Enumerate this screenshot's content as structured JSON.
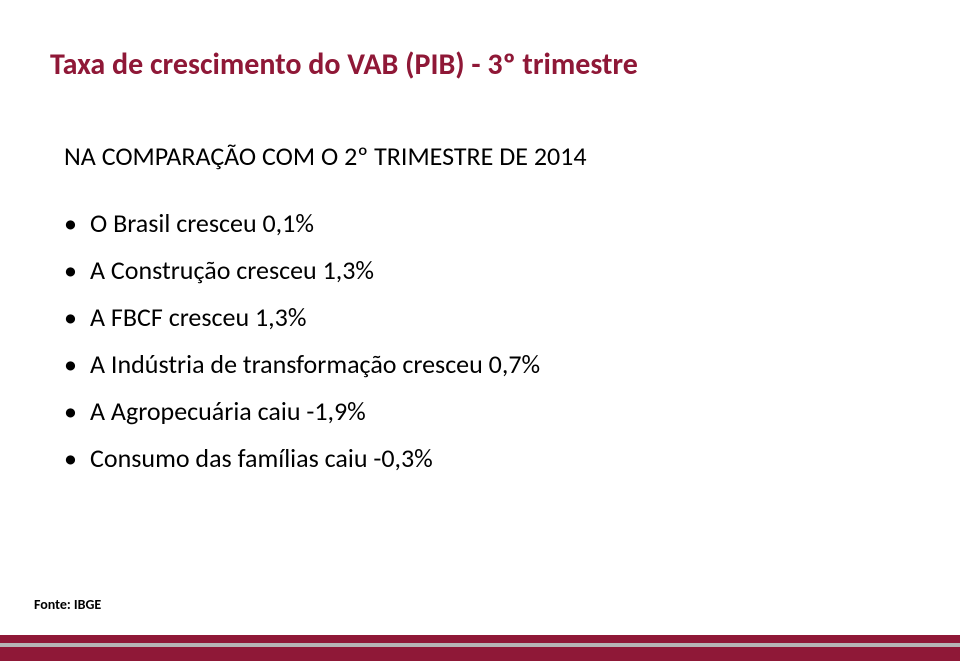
{
  "title": {
    "text": "Taxa de crescimento do VAB (PIB) - 3º trimestre",
    "fontsize": 30,
    "color": "#8f1837",
    "background": "#ffffff"
  },
  "subtitle": {
    "text": "NA COMPARAÇÃO COM O 2º TRIMESTRE DE 2014",
    "fontsize": 26,
    "color": "#000000"
  },
  "bullets": {
    "fontsize": 26,
    "color": "#000000",
    "items": [
      "O Brasil cresceu 0,1%",
      "A Construção cresceu 1,3%",
      "A FBCF cresceu 1,3%",
      "A Indústria de transformação cresceu 0,7%",
      "A Agropecuária caiu -1,9%",
      "Consumo das famílias caiu -0,3%"
    ]
  },
  "source": {
    "text": "Fonte: IBGE",
    "fontsize": 14,
    "color": "#000000"
  },
  "footer_bars": [
    {
      "color": "#8f1837",
      "height": 8
    },
    {
      "color": "#b5b5b5",
      "height": 4
    },
    {
      "color": "#8f1837",
      "height": 14
    }
  ]
}
